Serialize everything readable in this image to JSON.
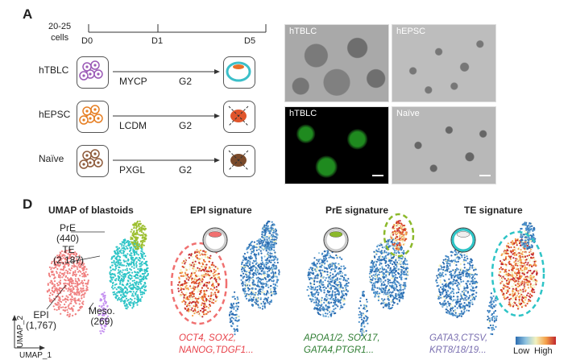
{
  "panelA": {
    "letter": "A",
    "cells_label": "20-25\ncells",
    "timepoints": [
      "D0",
      "D1",
      "D5"
    ],
    "rows": [
      {
        "name": "hTBLC",
        "media": "MYCP",
        "stage": "G2",
        "outcome_color": "#3bbfc9"
      },
      {
        "name": "hEPSC",
        "media": "LCDM",
        "stage": "G2",
        "outcome_color": "#e0552b"
      },
      {
        "name": "Naïve",
        "media": "PXGL",
        "stage": "G2",
        "outcome_color": "#7a4a2a"
      }
    ],
    "images": [
      {
        "title": "hTBLC",
        "style": "brightfield-blastoid"
      },
      {
        "title": "hEPSC",
        "style": "brightfield-sparse"
      },
      {
        "title": "hTBLC",
        "style": "fluorescence-green"
      },
      {
        "title": "Naïve",
        "style": "brightfield-sparse"
      }
    ]
  },
  "panelD": {
    "letter": "D",
    "umap_title": "UMAP of blastoids",
    "clusters": [
      {
        "name": "PrE",
        "count": "(440)",
        "color": "#9cbf2f"
      },
      {
        "name": "TE",
        "count": "(2,187)",
        "color": "#2ec4c6"
      },
      {
        "name": "EPI",
        "count": "(1,767)",
        "color": "#f08080"
      },
      {
        "name": "Meso.",
        "count": "(269)",
        "color": "#c48ff0"
      }
    ],
    "axis_x": "UMAP_1",
    "axis_y": "UMAP_2",
    "signatures": [
      {
        "title": "EPI signature",
        "genes_line1": "OCT4, SOX2,",
        "genes_line2": "NANOG,TDGF1...",
        "gene_color": "#e8424a",
        "ring_color": "#f07070"
      },
      {
        "title": "PrE signature",
        "genes_line1": "APOA1/2, SOX17,",
        "genes_line2": "GATA4,PTGR1...",
        "gene_color": "#2e7d32",
        "ring_color": "#8bb82a"
      },
      {
        "title": "TE signature",
        "genes_line1": "GATA3,CTSV,",
        "genes_line2": "KRT8/18/19...",
        "gene_color": "#7a6fb0",
        "ring_color": "#2ec4c6"
      }
    ],
    "colorbar": {
      "low": "Low",
      "high": "High"
    }
  }
}
